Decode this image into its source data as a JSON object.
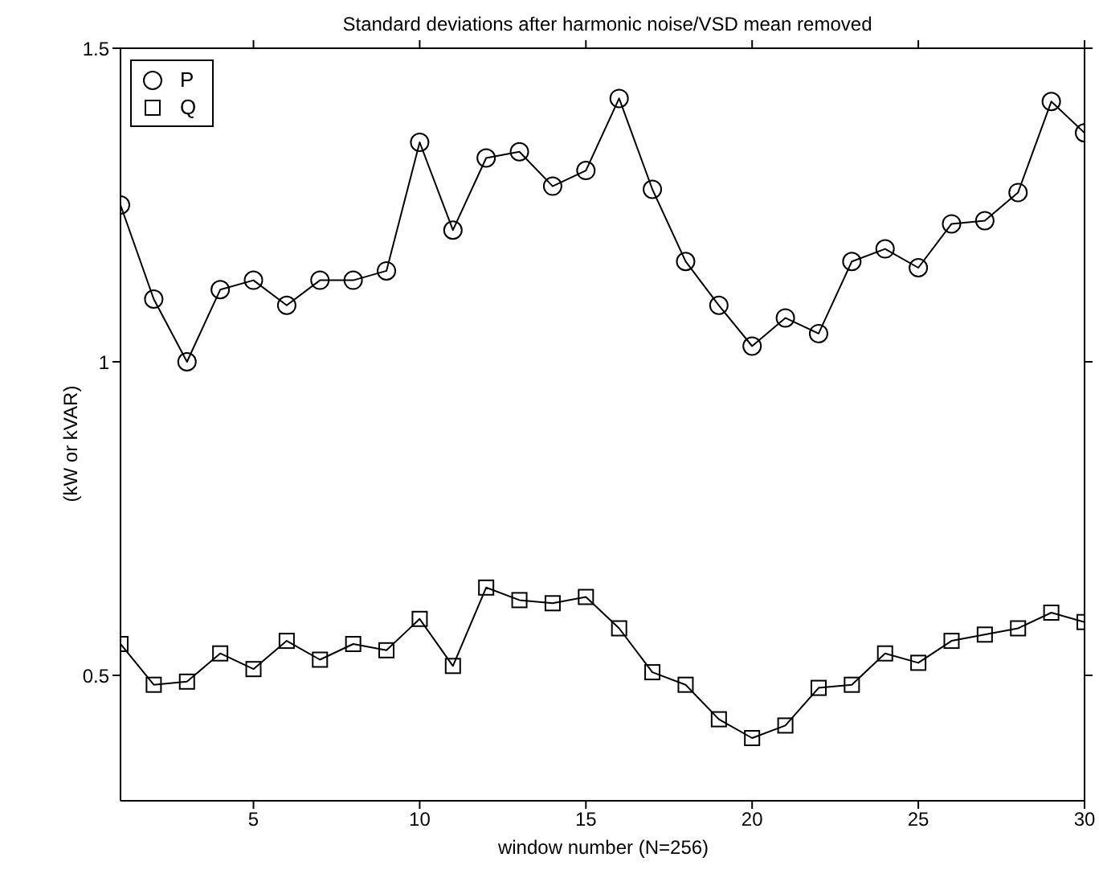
{
  "chart_data": {
    "type": "line",
    "title": "Standard deviations after harmonic noise/VSD mean removed",
    "xlabel": "window number (N=256)",
    "ylabel": "(kW or kVAR)",
    "x": [
      1,
      2,
      3,
      4,
      5,
      6,
      7,
      8,
      9,
      10,
      11,
      12,
      13,
      14,
      15,
      16,
      17,
      18,
      19,
      20,
      21,
      22,
      23,
      24,
      25,
      26,
      27,
      28,
      29,
      30
    ],
    "series": [
      {
        "name": "P",
        "color": "#000000",
        "marker": "circle",
        "values": [
          1.25,
          1.1,
          1.0,
          1.115,
          1.13,
          1.09,
          1.13,
          1.13,
          1.145,
          1.35,
          1.21,
          1.325,
          1.335,
          1.28,
          1.305,
          1.42,
          1.275,
          1.16,
          1.09,
          1.025,
          1.07,
          1.045,
          1.16,
          1.18,
          1.15,
          1.22,
          1.225,
          1.27,
          1.415,
          1.365
        ]
      },
      {
        "name": "Q",
        "color": "#000000",
        "marker": "square",
        "values": [
          0.55,
          0.485,
          0.49,
          0.535,
          0.51,
          0.555,
          0.525,
          0.55,
          0.54,
          0.59,
          0.515,
          0.64,
          0.62,
          0.615,
          0.625,
          0.575,
          0.505,
          0.485,
          0.43,
          0.4,
          0.42,
          0.48,
          0.485,
          0.535,
          0.52,
          0.555,
          0.565,
          0.575,
          0.6,
          0.585
        ]
      }
    ],
    "xlim": [
      1,
      30
    ],
    "xticks": [
      5,
      10,
      15,
      20,
      25,
      30
    ],
    "ylim": [
      0.3,
      1.5
    ],
    "yticks": [
      0.5,
      1,
      1.5
    ],
    "grid": false,
    "legend": "top left",
    "line_style": "solid"
  }
}
